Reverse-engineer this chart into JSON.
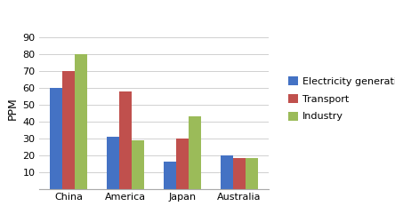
{
  "categories": [
    "China",
    "America",
    "Japan",
    "Australia"
  ],
  "series": {
    "Electricity generation": [
      60,
      31,
      16,
      20
    ],
    "Transport": [
      70,
      58,
      30,
      18
    ],
    "Industry": [
      80,
      29,
      43,
      18
    ]
  },
  "colors": {
    "Electricity generation": "#4472C4",
    "Transport": "#C0504D",
    "Industry": "#9BBB59"
  },
  "ylabel": "PPM",
  "ylim": [
    0,
    95
  ],
  "yticks": [
    10,
    20,
    30,
    40,
    50,
    60,
    70,
    80,
    90
  ],
  "bar_width": 0.22,
  "background_color": "#FFFFFF",
  "grid_color": "#D0D0D0",
  "legend_fontsize": 8,
  "tick_fontsize": 8,
  "ylabel_fontsize": 9
}
